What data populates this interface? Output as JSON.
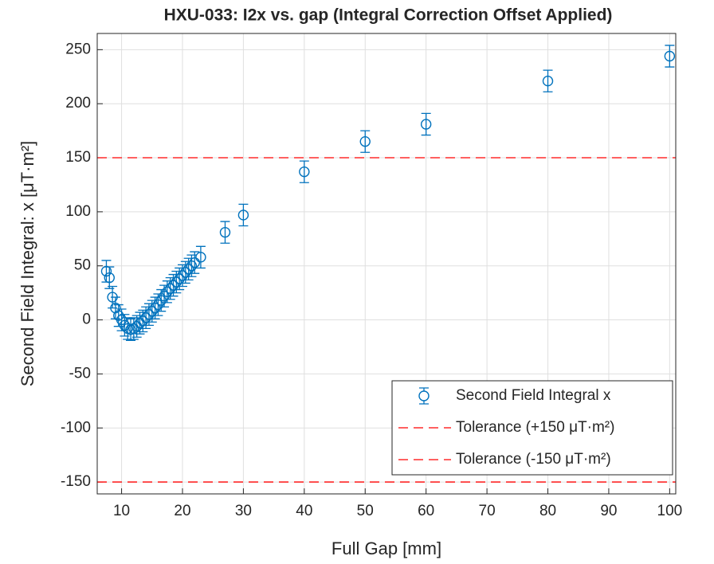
{
  "chart_data": {
    "type": "errorbar",
    "title": "HXU-033: I2x vs. gap (Integral Correction Offset Applied)",
    "xlabel": "Full Gap [mm]",
    "ylabel": "Second Field Integral: x [μT·m²]",
    "xlim": [
      6,
      101
    ],
    "ylim": [
      -161,
      265
    ],
    "xticks": [
      10,
      20,
      30,
      40,
      50,
      60,
      70,
      80,
      90,
      100
    ],
    "yticks": [
      -150,
      -100,
      -50,
      0,
      50,
      100,
      150,
      200,
      250
    ],
    "grid": true,
    "legend": "lower right",
    "series": [
      {
        "name": "Second Field Integral x",
        "color": "#0072bd",
        "x": [
          7.5,
          8,
          8.5,
          9,
          9.5,
          10,
          10.5,
          11,
          11.5,
          12,
          12.5,
          13,
          13.5,
          14,
          14.5,
          15,
          15.5,
          16,
          16.5,
          17,
          17.5,
          18,
          18.5,
          19,
          19.5,
          20,
          20.5,
          21,
          21.5,
          22,
          23,
          27,
          30,
          40,
          50,
          60,
          80,
          100
        ],
        "values": [
          45,
          39,
          21,
          11,
          4,
          0,
          -5,
          -8,
          -9,
          -8,
          -6,
          -3,
          -1,
          2,
          5,
          8,
          11,
          14,
          18,
          22,
          26,
          29,
          32,
          35,
          38,
          41,
          44,
          47,
          50,
          53,
          58,
          81,
          97,
          137,
          165,
          181,
          221,
          244
        ],
        "errors": [
          10,
          10,
          10,
          10,
          10,
          10,
          10,
          10,
          10,
          10,
          10,
          10,
          10,
          10,
          10,
          10,
          10,
          10,
          10,
          10,
          10,
          10,
          10,
          10,
          10,
          10,
          10,
          10,
          10,
          10,
          10,
          10,
          10,
          10,
          10,
          10,
          10,
          10
        ]
      }
    ],
    "reference_lines": [
      {
        "name": "Tolerance (+150 μT·m²)",
        "value": 150,
        "color": "#ff0000"
      },
      {
        "name": "Tolerance (-150 μT·m²)",
        "value": -150,
        "color": "#ff0000"
      }
    ]
  }
}
